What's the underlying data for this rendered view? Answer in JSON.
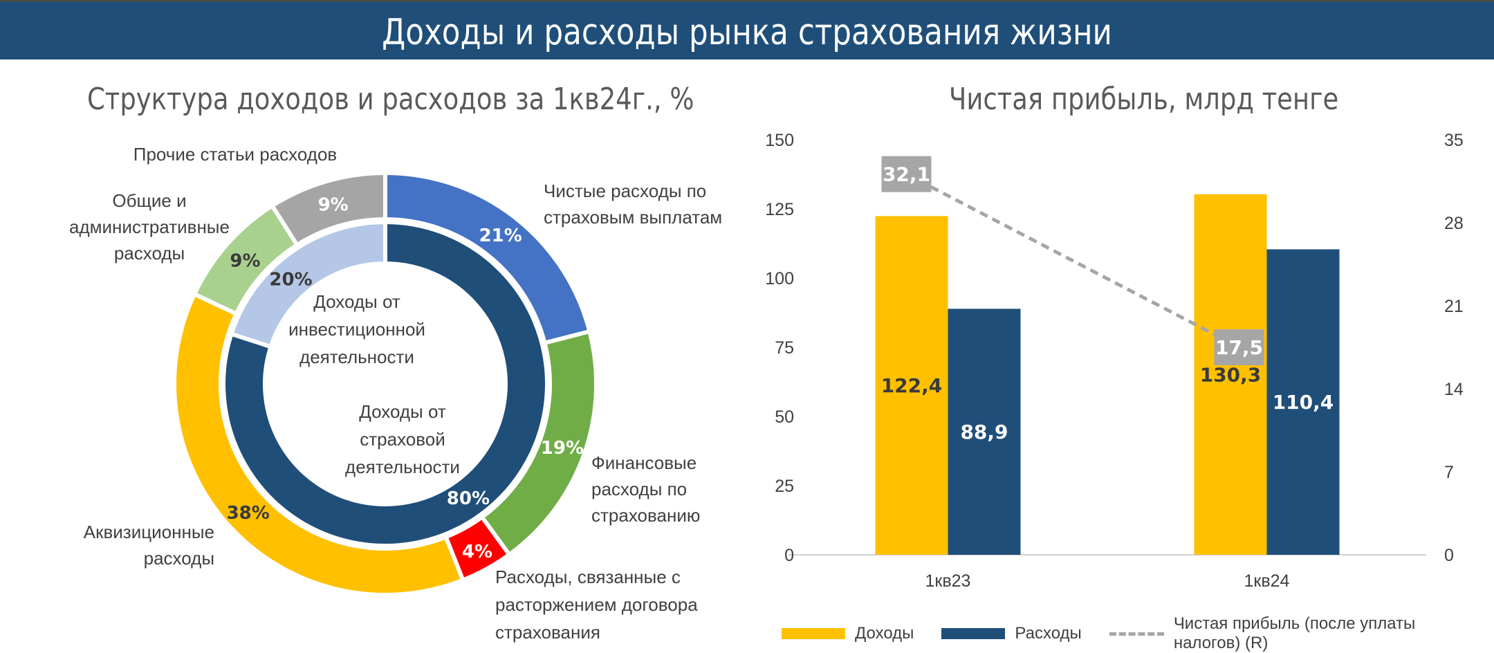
{
  "header": {
    "title": "Доходы и расходы рынка страхования жизни"
  },
  "colors": {
    "insurance_payouts": "#4472c4",
    "financial": "#70ad47",
    "termination": "#ff0000",
    "acquisition": "#ffc000",
    "general_admin": "#a9d18e",
    "other": "#a5a5a5",
    "income_insurance": "#1f4e79",
    "income_investment": "#b4c7e7",
    "bar_income": "#ffc000",
    "bar_expense": "#1f4e79",
    "profit_line": "#a6a6a6"
  },
  "chart_data": [
    {
      "type": "pie",
      "title": "Структура доходов и расходов за 1кв24г., %",
      "outer_ring": {
        "slices": [
          {
            "label": "Чистые расходы по страховым выплатам",
            "value": 21,
            "value_label": "21%"
          },
          {
            "label": "Финансовые расходы по страхованию",
            "value": 19,
            "value_label": "19%"
          },
          {
            "label": "Расходы, связанные с расторжением договора страхования",
            "value": 4,
            "value_label": "4%"
          },
          {
            "label": "Аквизиционные расходы",
            "value": 38,
            "value_label": "38%"
          },
          {
            "label": "Общие и административные расходы",
            "value": 9,
            "value_label": "9%"
          },
          {
            "label": "Прочие статьи расходов",
            "value": 9,
            "value_label": "9%"
          }
        ]
      },
      "inner_ring": {
        "slices": [
          {
            "label": "Доходы от страховой деятельности",
            "value": 80,
            "value_label": "80%"
          },
          {
            "label": "Доходы от инвестиционной деятельности",
            "value": 20,
            "value_label": "20%"
          }
        ]
      }
    },
    {
      "type": "bar",
      "title": "Чистая прибыль, млрд тенге",
      "categories": [
        "1кв23",
        "1кв24"
      ],
      "series": [
        {
          "name": "Доходы",
          "type": "bar",
          "axis": "left",
          "values": [
            122.4,
            130.3
          ],
          "value_labels": [
            "122,4",
            "130,3"
          ]
        },
        {
          "name": "Расходы",
          "type": "bar",
          "axis": "left",
          "values": [
            88.9,
            110.4
          ],
          "value_labels": [
            "88,9",
            "110,4"
          ]
        },
        {
          "name": "Чистая прибыль (после уплаты налогов) (R)",
          "type": "line",
          "axis": "right",
          "values": [
            32.1,
            17.5
          ],
          "value_labels": [
            "32,1",
            "17,5"
          ]
        }
      ],
      "ylim": [
        0,
        150
      ],
      "yticks": [
        "0",
        "25",
        "50",
        "75",
        "100",
        "125",
        "150"
      ],
      "y2lim": [
        0,
        35
      ],
      "y2ticks": [
        "0",
        "7",
        "14",
        "21",
        "28",
        "35"
      ],
      "grid": false,
      "legend": "bottom"
    }
  ]
}
